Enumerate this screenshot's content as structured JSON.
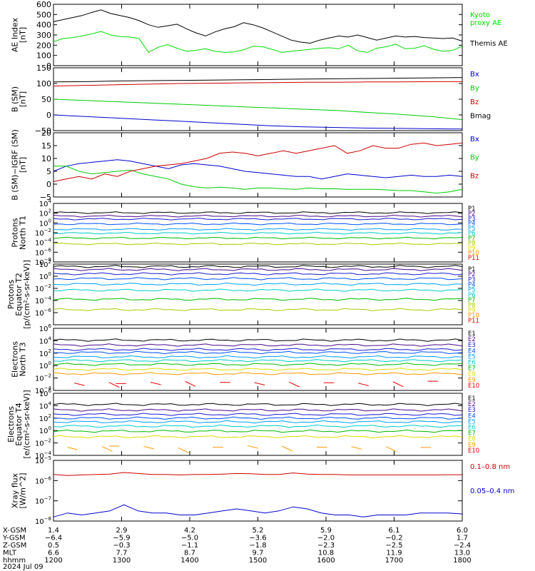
{
  "chart_data": {
    "type": "line",
    "x_axis": {
      "name": "hhmm",
      "unit": "time",
      "ticks": [
        "1200",
        "1300",
        "1400",
        "1500",
        "1600",
        "1700",
        "1800"
      ],
      "range": [
        "1200",
        "1800"
      ]
    },
    "date_label": "2024 Jul 09",
    "panels": [
      {
        "id": "ae",
        "ylabel": [
          "AE Index",
          "[nT]"
        ],
        "scale": "linear",
        "ylim": [
          0,
          600
        ],
        "ticks": [
          0,
          100,
          200,
          300,
          400,
          500,
          600
        ],
        "series": [
          {
            "name": "Kyoto proxy AE",
            "label": [
              "Kyoto",
              "proxy AE"
            ],
            "color": "#00dd00",
            "values": [
              235,
              265,
              275,
              290,
              310,
              335,
              300,
              285,
              280,
              265,
              130,
              180,
              205,
              170,
              140,
              150,
              165,
              140,
              130,
              135,
              155,
              190,
              185,
              160,
              130,
              140,
              150,
              160,
              170,
              175,
              165,
              200,
              145,
              130,
              170,
              185,
              210,
              165,
              170,
              195,
              160,
              140,
              150,
              190
            ]
          },
          {
            "name": "Themis AE",
            "label": [
              "Themis AE"
            ],
            "color": "#000000",
            "values": [
              430,
              450,
              470,
              490,
              520,
              545,
              510,
              490,
              470,
              440,
              400,
              375,
              390,
              405,
              360,
              320,
              290,
              330,
              360,
              380,
              420,
              400,
              370,
              330,
              290,
              250,
              230,
              220,
              250,
              270,
              290,
              280,
              300,
              275,
              250,
              270,
              290,
              280,
              285,
              275,
              270,
              265,
              270,
              240
            ]
          }
        ]
      },
      {
        "id": "bsm",
        "ylabel": [
          "B (SM)",
          "[nT]"
        ],
        "scale": "linear",
        "ylim": [
          -50,
          150
        ],
        "ticks": [
          -50,
          0,
          50,
          100,
          150
        ],
        "series": [
          {
            "name": "Bx",
            "label": [
              "Bx"
            ],
            "color": "#0000cc",
            "values": [
              0,
              -5,
              -10,
              -15,
              -20,
              -25,
              -30,
              -35,
              -38,
              -40,
              -42,
              -43,
              -44,
              -45
            ]
          },
          {
            "name": "By",
            "label": [
              "By"
            ],
            "color": "#00cc00",
            "values": [
              50,
              46,
              42,
              38,
              34,
              30,
              26,
              22,
              18,
              14,
              8,
              2,
              -5,
              -15
            ]
          },
          {
            "name": "Bz",
            "label": [
              "Bz"
            ],
            "color": "#cc0000",
            "values": [
              92,
              94,
              96,
              98,
              100,
              101,
              102,
              103,
              104,
              104,
              105,
              105,
              106,
              106
            ]
          },
          {
            "name": "Bmag",
            "label": [
              "Bmag"
            ],
            "color": "#000000",
            "values": [
              105,
              106,
              108,
              109,
              110,
              111,
              112,
              113,
              114,
              115,
              116,
              117,
              118,
              119
            ]
          }
        ]
      },
      {
        "id": "bigrf",
        "ylabel": [
          "B (SM)−IGRF (SM)",
          "[nT]"
        ],
        "scale": "linear",
        "ylim": [
          -5,
          20
        ],
        "ticks": [
          -5,
          0,
          5,
          10,
          15,
          20
        ],
        "series": [
          {
            "name": "Bx",
            "label": [
              "Bx"
            ],
            "color": "#0000cc",
            "values": [
              5,
              7,
              8,
              8.5,
              9,
              9.5,
              9,
              8,
              7,
              6,
              7.5,
              8,
              7.5,
              7,
              6,
              5,
              4.5,
              4,
              3.5,
              3,
              3,
              2,
              3,
              4,
              3.5,
              3,
              2.5,
              3,
              3.5,
              3,
              3,
              3.5,
              3
            ]
          },
          {
            "name": "By",
            "label": [
              "By"
            ],
            "color": "#00cc00",
            "values": [
              7,
              7,
              5,
              4,
              4.5,
              5,
              5.5,
              4,
              3,
              2,
              0,
              -1,
              -1.5,
              -1.2,
              -1.5,
              -2,
              -1.5,
              -1.5,
              -1.8,
              -2,
              -1.5,
              -1.8,
              -1.8,
              -2,
              -2,
              -2,
              -2.2,
              -2.5,
              -2.5,
              -3,
              -3.5,
              -3,
              -2
            ]
          },
          {
            "name": "Bz",
            "label": [
              "Bz"
            ],
            "color": "#cc0000",
            "values": [
              1,
              2,
              3,
              2,
              4,
              3,
              5,
              6,
              7,
              7.5,
              8,
              9,
              10,
              12,
              12.5,
              12,
              11,
              12,
              13,
              12,
              13,
              14,
              15,
              12,
              13,
              15,
              14,
              14,
              15.5,
              16,
              15,
              15.5,
              16
            ]
          }
        ]
      },
      {
        "id": "p_north",
        "ylabel": [
          "Protons",
          "North T1"
        ],
        "scale": "log",
        "ylim_exp": [
          -8,
          4
        ],
        "tick_exps": [
          -8,
          -6,
          -4,
          -2,
          0,
          2,
          4
        ],
        "legend": [
          "P1",
          "P2",
          "P3",
          "P4",
          "P5",
          "P6",
          "P7",
          "P8",
          "P9",
          "P10",
          "P11"
        ],
        "legend_colors": [
          "#000000",
          "#4b0a8c",
          "#1a1ad2",
          "#0050ff",
          "#00a0ff",
          "#00cccc",
          "#00bb00",
          "#aacc00",
          "#dddd00",
          "#ff9900",
          "#ee0000"
        ],
        "levels_exp": [
          2.1,
          1.4,
          0.8,
          -0.2,
          -1.3,
          -2.1,
          -3.1,
          -4.3
        ]
      },
      {
        "id": "p_equator",
        "ylabel": [
          "Protons",
          "Equator T2",
          "[p/(cm²-s-sr-keV)]"
        ],
        "scale": "log",
        "ylim_exp": [
          -8,
          2
        ],
        "tick_exps": [
          -6,
          -4,
          -2,
          0,
          2
        ],
        "legend": [
          "P1",
          "P2",
          "P3",
          "P4",
          "P5",
          "P6",
          "P7",
          "P8",
          "P9",
          "P10",
          "P11"
        ],
        "legend_colors": [
          "#000000",
          "#4b0a8c",
          "#1a1ad2",
          "#0050ff",
          "#00a0ff",
          "#00cccc",
          "#00bb00",
          "#aacc00",
          "#dddd00",
          "#ff9900",
          "#ee0000"
        ],
        "levels_exp": [
          1.6,
          1.1,
          0.4,
          -0.4,
          -1.3,
          -2.3,
          -3.8,
          -5.5
        ]
      },
      {
        "id": "e_north",
        "ylabel": [
          "Electrons",
          "North T3"
        ],
        "scale": "log",
        "ylim_exp": [
          -4,
          6
        ],
        "tick_exps": [
          -4,
          -2,
          0,
          2,
          4,
          6
        ],
        "legend": [
          "E1",
          "E2",
          "E3",
          "E4",
          "E5",
          "E6",
          "E7",
          "E8",
          "E9",
          "E10"
        ],
        "legend_colors": [
          "#000000",
          "#4b0a8c",
          "#1a1ad2",
          "#0050ff",
          "#00a0ff",
          "#00cccc",
          "#00bb00",
          "#dddd00",
          "#ff9900",
          "#ee0000"
        ],
        "levels_exp": [
          4.1,
          3.3,
          2.6,
          2.1,
          1.4,
          0.8,
          0.2,
          -0.6,
          -1.3,
          -2.7
        ]
      },
      {
        "id": "e_equator",
        "ylabel": [
          "Electrons",
          "Equator T4",
          "[e/(cm²-s-sr-keV)]"
        ],
        "scale": "log",
        "ylim_exp": [
          -4,
          6
        ],
        "tick_exps": [
          -4,
          -2,
          0,
          2,
          4,
          6
        ],
        "legend": [
          "E1",
          "E2",
          "E3",
          "E4",
          "E5",
          "E6",
          "E7",
          "E8",
          "E9",
          "E10"
        ],
        "legend_colors": [
          "#000000",
          "#4b0a8c",
          "#1a1ad2",
          "#0050ff",
          "#00a0ff",
          "#00cccc",
          "#00bb00",
          "#dddd00",
          "#ff9900",
          "#ee0000"
        ],
        "levels_exp": [
          4.2,
          3.3,
          2.6,
          2.0,
          1.4,
          0.7,
          -0.1,
          -1.0,
          -2.6
        ]
      },
      {
        "id": "xray",
        "ylabel": [
          "Xray flux",
          "[W/m^2]"
        ],
        "scale": "log",
        "ylim_exp": [
          -8,
          -5
        ],
        "tick_exps": [
          -8,
          -7,
          -6,
          -5
        ],
        "series": [
          {
            "name": "0.1–0.8 nm",
            "label": [
              "0.1–0.8 nm"
            ],
            "color": "#cc0000",
            "values_exp": [
              -5.7,
              -5.75,
              -5.72,
              -5.7,
              -5.68,
              -5.6,
              -5.65,
              -5.7,
              -5.7,
              -5.72,
              -5.7,
              -5.7,
              -5.68,
              -5.65,
              -5.66,
              -5.7,
              -5.7,
              -5.62,
              -5.68,
              -5.7,
              -5.7,
              -5.72,
              -5.72,
              -5.72,
              -5.72,
              -5.72,
              -5.72,
              -5.72,
              -5.71,
              -5.71
            ]
          },
          {
            "name": "0.05–0.4 nm",
            "label": [
              "0.05–0.4 nm"
            ],
            "color": "#0000cc",
            "values_exp": [
              -7.8,
              -7.6,
              -7.7,
              -7.6,
              -7.5,
              -7.2,
              -7.5,
              -7.6,
              -7.6,
              -7.7,
              -7.7,
              -7.6,
              -7.5,
              -7.4,
              -7.5,
              -7.6,
              -7.5,
              -7.3,
              -7.4,
              -7.6,
              -7.7,
              -7.7,
              -7.8,
              -7.7,
              -7.7,
              -7.7,
              -7.6,
              -7.6,
              -7.6,
              -7.65
            ]
          }
        ]
      }
    ],
    "ephemeris": {
      "rows": [
        {
          "label": "X-GSM",
          "values": [
            "1.4",
            "2.9",
            "4.2",
            "5.2",
            "5.9",
            "6.1",
            "6.0"
          ]
        },
        {
          "label": "Y-GSM",
          "values": [
            "-6.4",
            "-5.9",
            "-5.0",
            "-3.6",
            "-2.0",
            "-0.2",
            "1.7"
          ]
        },
        {
          "label": "Z-GSM",
          "values": [
            "0.5",
            "-0.3",
            "-1.1",
            "-1.8",
            "-2.3",
            "-2.5",
            "-2.4"
          ]
        },
        {
          "label": "MLT",
          "values": [
            "6.6",
            "7.7",
            "8.7",
            "9.7",
            "10.8",
            "11.9",
            "13.0"
          ]
        },
        {
          "label": "hhmm",
          "values": [
            "1200",
            "1300",
            "1400",
            "1500",
            "1600",
            "1700",
            "1800"
          ]
        }
      ]
    }
  }
}
